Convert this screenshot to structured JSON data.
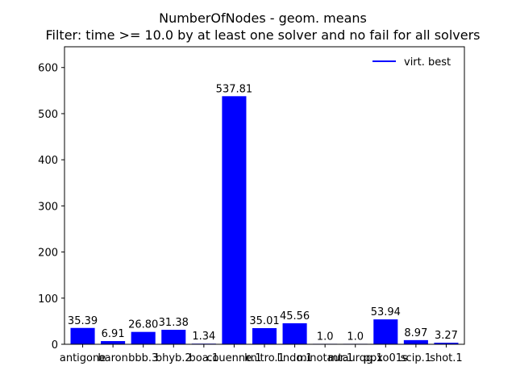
{
  "chart_data": {
    "type": "bar",
    "title": "NumberOfNodes - geom. means",
    "subtitle": "Filter: time >= 10.0 by at least one solver and no fail for all solvers",
    "categories": [
      "antigone",
      "baron",
      "bbb.3",
      "bhyb.2",
      "boa.1",
      "couenne.1",
      "knitro.1",
      "lindo.1",
      "minotaur.1",
      "mtaurqg.1",
      "ppxo01s",
      "scip.1",
      "shot.1"
    ],
    "series": [
      {
        "name": "virt. best",
        "color": "#0000ff",
        "values": [
          35.39,
          6.91,
          26.8,
          31.38,
          1.34,
          537.81,
          35.01,
          45.56,
          1.0,
          1.0,
          53.94,
          8.97,
          3.27
        ]
      }
    ],
    "data_labels": [
      "35.39",
      "6.91",
      "26.80",
      "31.38",
      "1.34",
      "537.81",
      "35.01",
      "45.56",
      "1.0",
      "1.0",
      "53.94",
      "8.97",
      "3.27"
    ],
    "ylim": [
      0,
      645
    ],
    "yticks": [
      0,
      100,
      200,
      300,
      400,
      500,
      600
    ],
    "xlabel": "",
    "ylabel": "",
    "grid": false,
    "legend_position": "top-right"
  }
}
